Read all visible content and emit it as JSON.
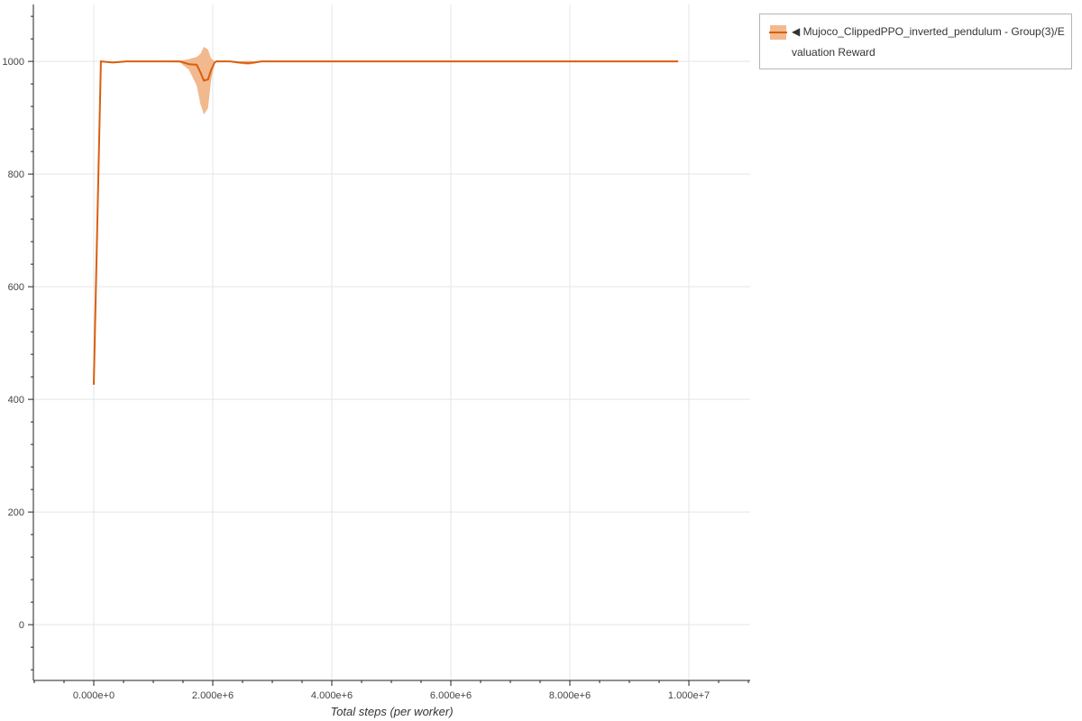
{
  "chart_data": {
    "type": "line",
    "title": "",
    "xlabel": "Total steps (per worker)",
    "ylabel": "",
    "xlim": [
      -1015000,
      11030000
    ],
    "ylim": [
      -99,
      1101
    ],
    "grid": true,
    "legend_placement": "outside-top-right",
    "x_ticks": [
      0,
      2000000,
      4000000,
      6000000,
      8000000,
      10000000
    ],
    "x_tick_labels": [
      "0.000e+0",
      "2.000e+6",
      "4.000e+6",
      "6.000e+6",
      "8.000e+6",
      "1.000e+7"
    ],
    "y_ticks": [
      0,
      200,
      400,
      600,
      800,
      1000
    ],
    "y_tick_labels": [
      "0",
      "200",
      "400",
      "600",
      "800",
      "1000"
    ],
    "series": [
      {
        "name": "◀ Mujoco_ClippedPPO_inverted_pendulum - Group(3)/Evaluation Reward",
        "color": "#d95f0e",
        "band_color": "#f2b98f",
        "x": [
          0,
          120000,
          320000,
          550000,
          1450000,
          1600000,
          1730000,
          1790000,
          1850000,
          1920000,
          1970000,
          2030000,
          2060000,
          2290000,
          2440000,
          2590000,
          2700000,
          2820000,
          9820000
        ],
        "mean": [
          426,
          1000,
          998,
          1000,
          1000,
          995,
          994,
          981,
          966,
          968,
          984,
          998,
          1000,
          1000,
          998,
          997,
          998,
          1000,
          1000
        ],
        "lower": [
          426,
          1000,
          997,
          1000,
          998,
          985,
          957,
          925,
          906,
          917,
          965,
          996,
          1000,
          999,
          996,
          994,
          996,
          1000,
          1000
        ],
        "upper": [
          426,
          1000,
          1000,
          1000,
          1001,
          1004,
          1008,
          1013,
          1026,
          1021,
          1006,
          1000,
          1000,
          1001,
          1000,
          1001,
          1000,
          1000,
          1000
        ]
      }
    ]
  }
}
